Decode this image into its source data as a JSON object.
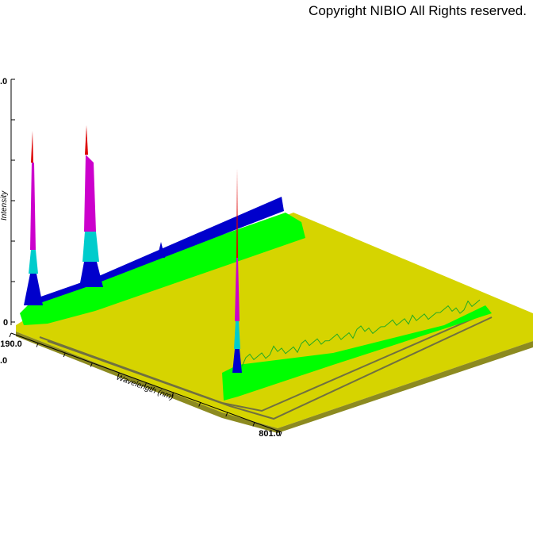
{
  "copyright": "Copyright NIBIO All Rights reserved.",
  "chart_data": {
    "type": "area",
    "view": "3d-surface",
    "xlabel": "Wavelength (nm)",
    "zlabel": "Intensity",
    "x_range": [
      190.0,
      801.0
    ],
    "x_tick_labels": [
      "190.0",
      "801.0"
    ],
    "z_tick_labels": [
      "0",
      ".0",
      ".0"
    ],
    "colors": {
      "floor": "#d6d400",
      "level1": "#00ff00",
      "level2": "#0000cc",
      "level3": "#00cccc",
      "level4": "#cc00cc",
      "level5": "#dd0000",
      "ridge": "#707040"
    },
    "peaks": [
      {
        "wavelength": 190,
        "intensity": 0.78
      },
      {
        "wavelength": 230,
        "intensity": 0.8
      },
      {
        "wavelength": 520,
        "intensity": 0.63
      }
    ]
  }
}
